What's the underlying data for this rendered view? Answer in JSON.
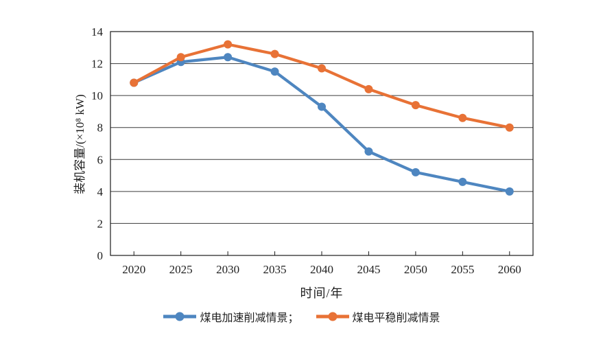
{
  "chart_data": {
    "type": "line",
    "title": "",
    "xlabel": "时间/年",
    "ylabel": "装机容量/(×10⁸ kW)",
    "categories": [
      "2020",
      "2025",
      "2030",
      "2035",
      "2040",
      "2045",
      "2050",
      "2055",
      "2060"
    ],
    "yticks": [
      0,
      2,
      4,
      6,
      8,
      10,
      12,
      14
    ],
    "ylim": [
      0,
      14
    ],
    "grid": "horizontal",
    "legend_position": "bottom",
    "series": [
      {
        "name": "煤电加速削减情景",
        "legend_label": "煤电加速削减情景；",
        "color": "#4e86c0",
        "values": [
          10.8,
          12.1,
          12.4,
          11.5,
          9.3,
          6.5,
          5.2,
          4.6,
          4.0
        ]
      },
      {
        "name": "煤电平稳削减情景",
        "legend_label": "煤电平稳削减情景",
        "color": "#e87236",
        "values": [
          10.8,
          12.4,
          13.2,
          12.6,
          11.7,
          10.4,
          9.4,
          8.6,
          8.0
        ]
      }
    ]
  },
  "colors": {
    "grid": "#3a3a3a",
    "frame": "#1a1a1a",
    "text": "#1f1f1f",
    "background": "#ffffff"
  }
}
